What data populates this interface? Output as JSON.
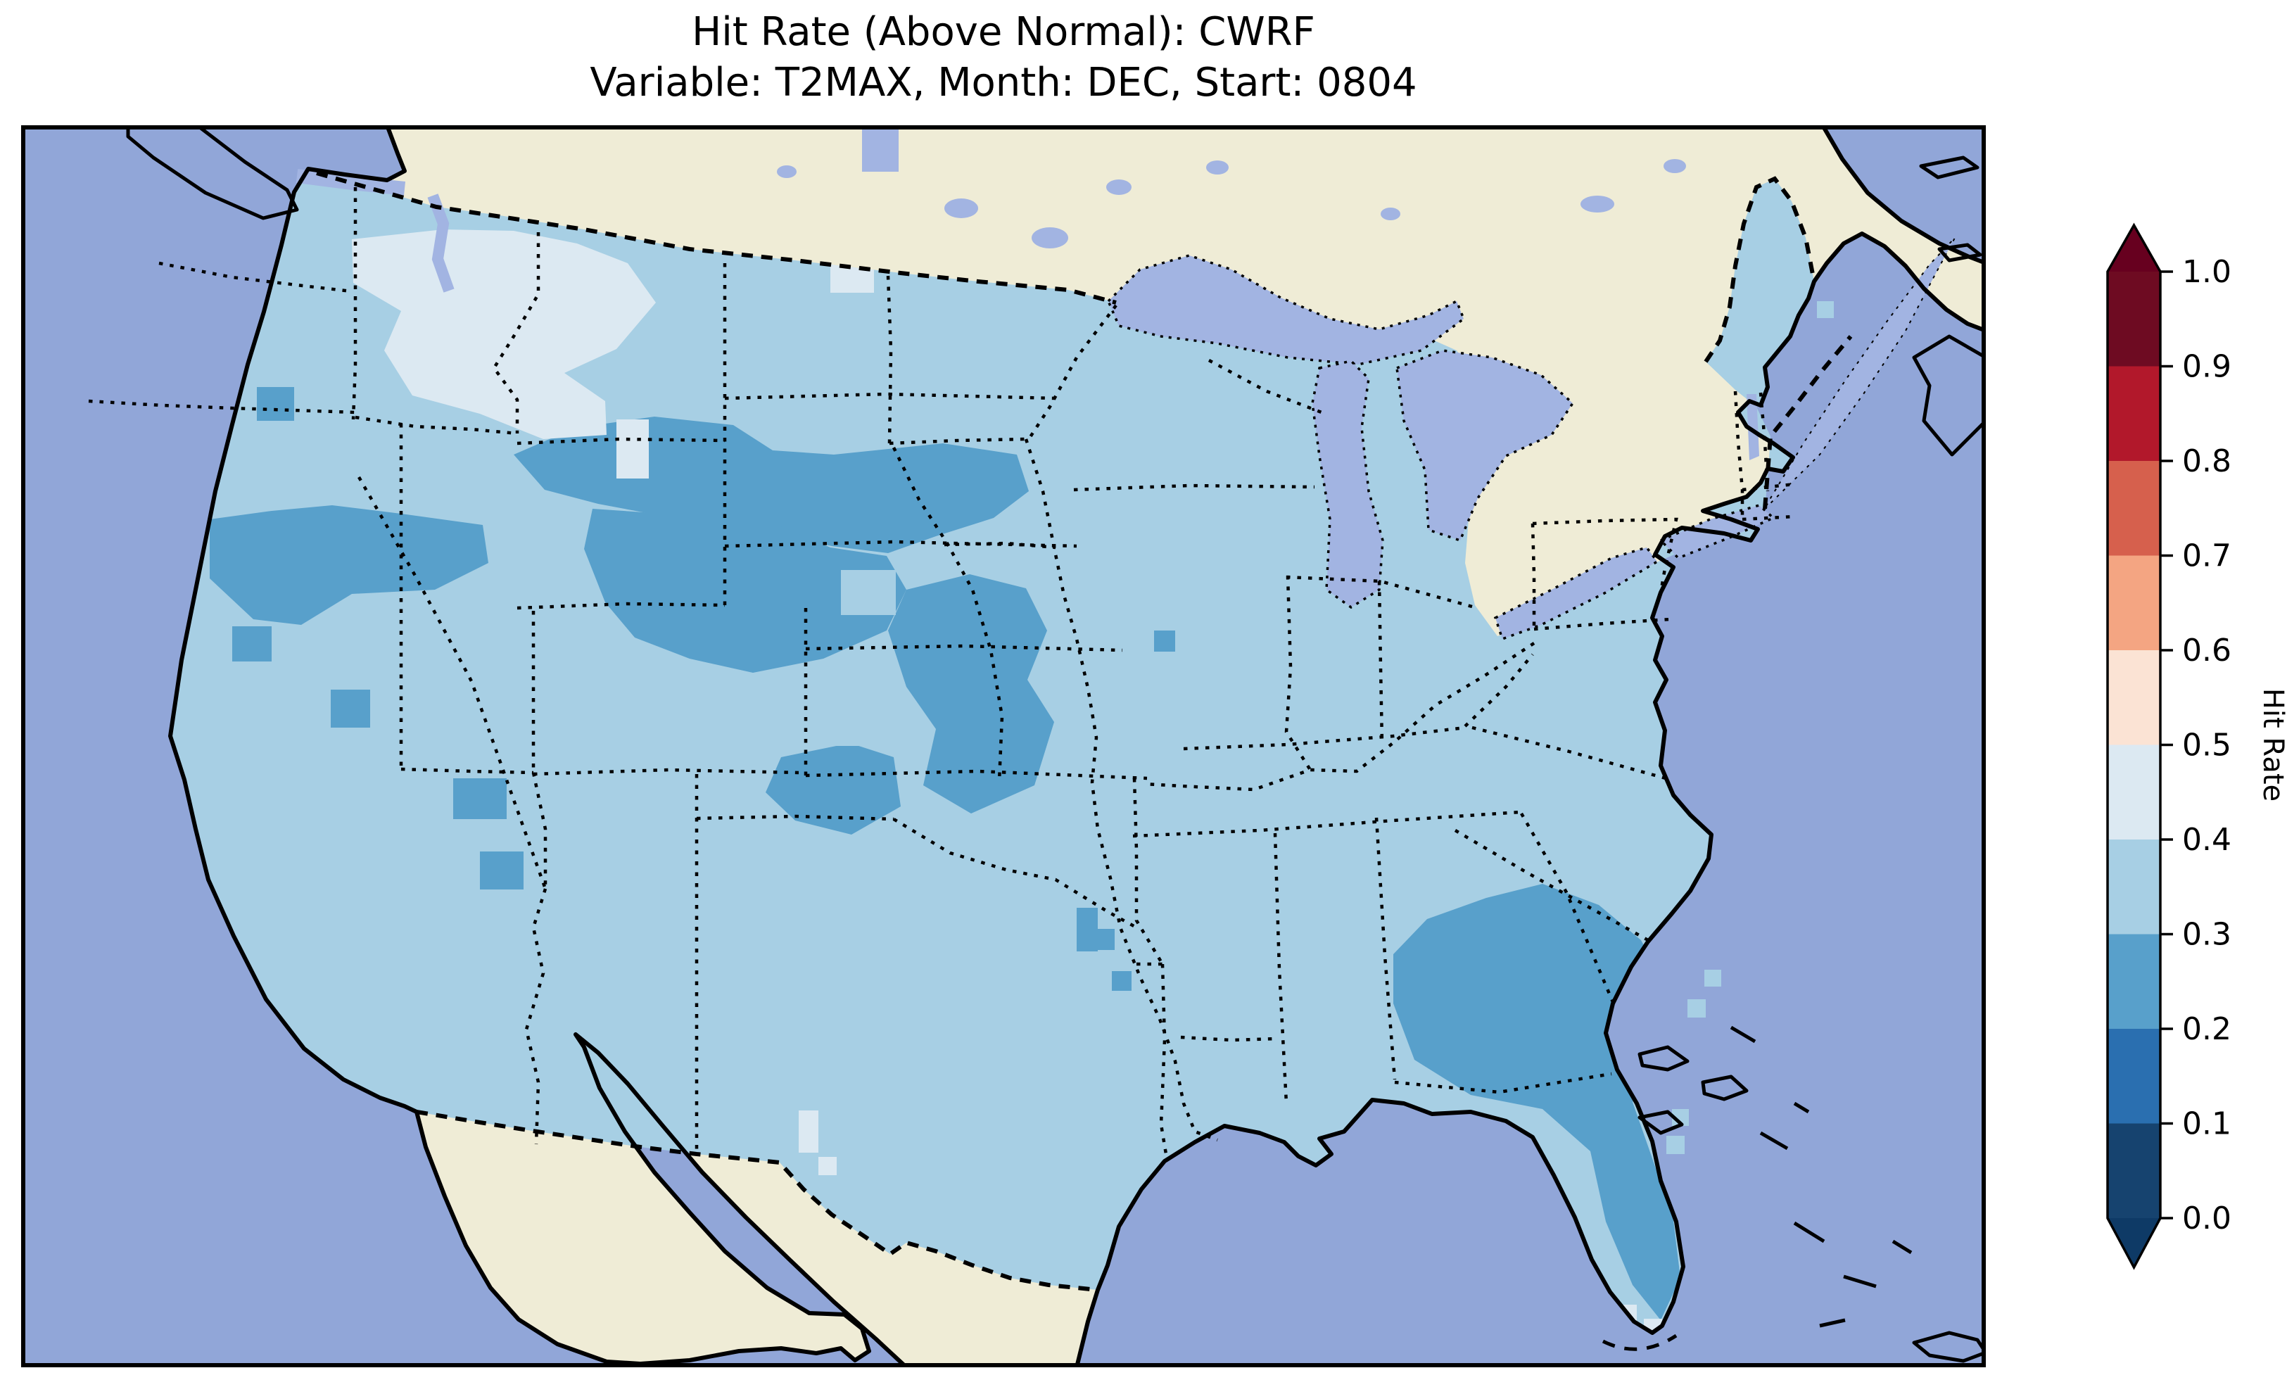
{
  "title": {
    "line1": "Hit Rate (Above Normal): CWRF",
    "line2": "Variable: T2MAX, Month: DEC, Start: 0804"
  },
  "colorbar": {
    "label": "Hit Rate",
    "extend": "both",
    "ticks_top_to_bottom": [
      "1.0",
      "0.9",
      "0.8",
      "0.7",
      "0.6",
      "0.5",
      "0.4",
      "0.3",
      "0.2",
      "0.1",
      "0.0"
    ],
    "colors_top_to_bottom": [
      "#67001f",
      "#6e0b22",
      "#b2182b",
      "#d6604d",
      "#f4a582",
      "#fbe3d4",
      "#dce9f2",
      "#a7cfe4",
      "#58a0cb",
      "#2a6fb0",
      "#16436f",
      "#0e3a66"
    ]
  },
  "colors": {
    "background": "#ffffff",
    "ocean": "#91a6d8",
    "land": "#efecd6",
    "lake": "#a2b4e2",
    "us_base": "#a7cfe4",
    "dark": "#58a0cb",
    "pale": "#dce9f2",
    "coast": "#000000",
    "border": "#000000",
    "frame": "#000000"
  },
  "chart_data": {
    "type": "heatmap",
    "title": "Hit Rate (Above Normal): CWRF",
    "subtitle": "Variable: T2MAX, Month: DEC, Start: 0804",
    "colorbar_label": "Hit Rate",
    "colorbar_ticks": [
      0.0,
      0.1,
      0.2,
      0.3,
      0.4,
      0.5,
      0.6,
      0.7,
      0.8,
      0.9,
      1.0
    ],
    "colorbar_range": [
      0.0,
      1.0
    ],
    "colormap": "RdBu_r (discrete, 0.1 bins, extend both)",
    "geography": "Contiguous United States (Lambert conformal style map with Canada, Mexico, Great Lakes, Atlantic/Pacific/Gulf oceans)",
    "regions": [
      {
        "region": "Most of CONUS",
        "hit_rate_bin": "0.3-0.4"
      },
      {
        "region": "Central Rockies / High Plains (MT, WY, CO, SD, NE, KS)",
        "hit_rate_bin": "0.2-0.3"
      },
      {
        "region": "Eastern Oregon / Northern Nevada / SW Idaho",
        "hit_rate_bin": "0.2-0.3"
      },
      {
        "region": "Utah scattered cells",
        "hit_rate_bin": "0.2-0.3"
      },
      {
        "region": "Georgia, coastal South Carolina and Florida peninsula",
        "hit_rate_bin": "0.2-0.3"
      },
      {
        "region": "Montana / Idaho patch and small ND spot",
        "hit_rate_bin": "0.4-0.5"
      },
      {
        "region": "Isolated single cells (IL, AR, TX)",
        "hit_rate_bin": "0.2-0.3"
      }
    ]
  }
}
